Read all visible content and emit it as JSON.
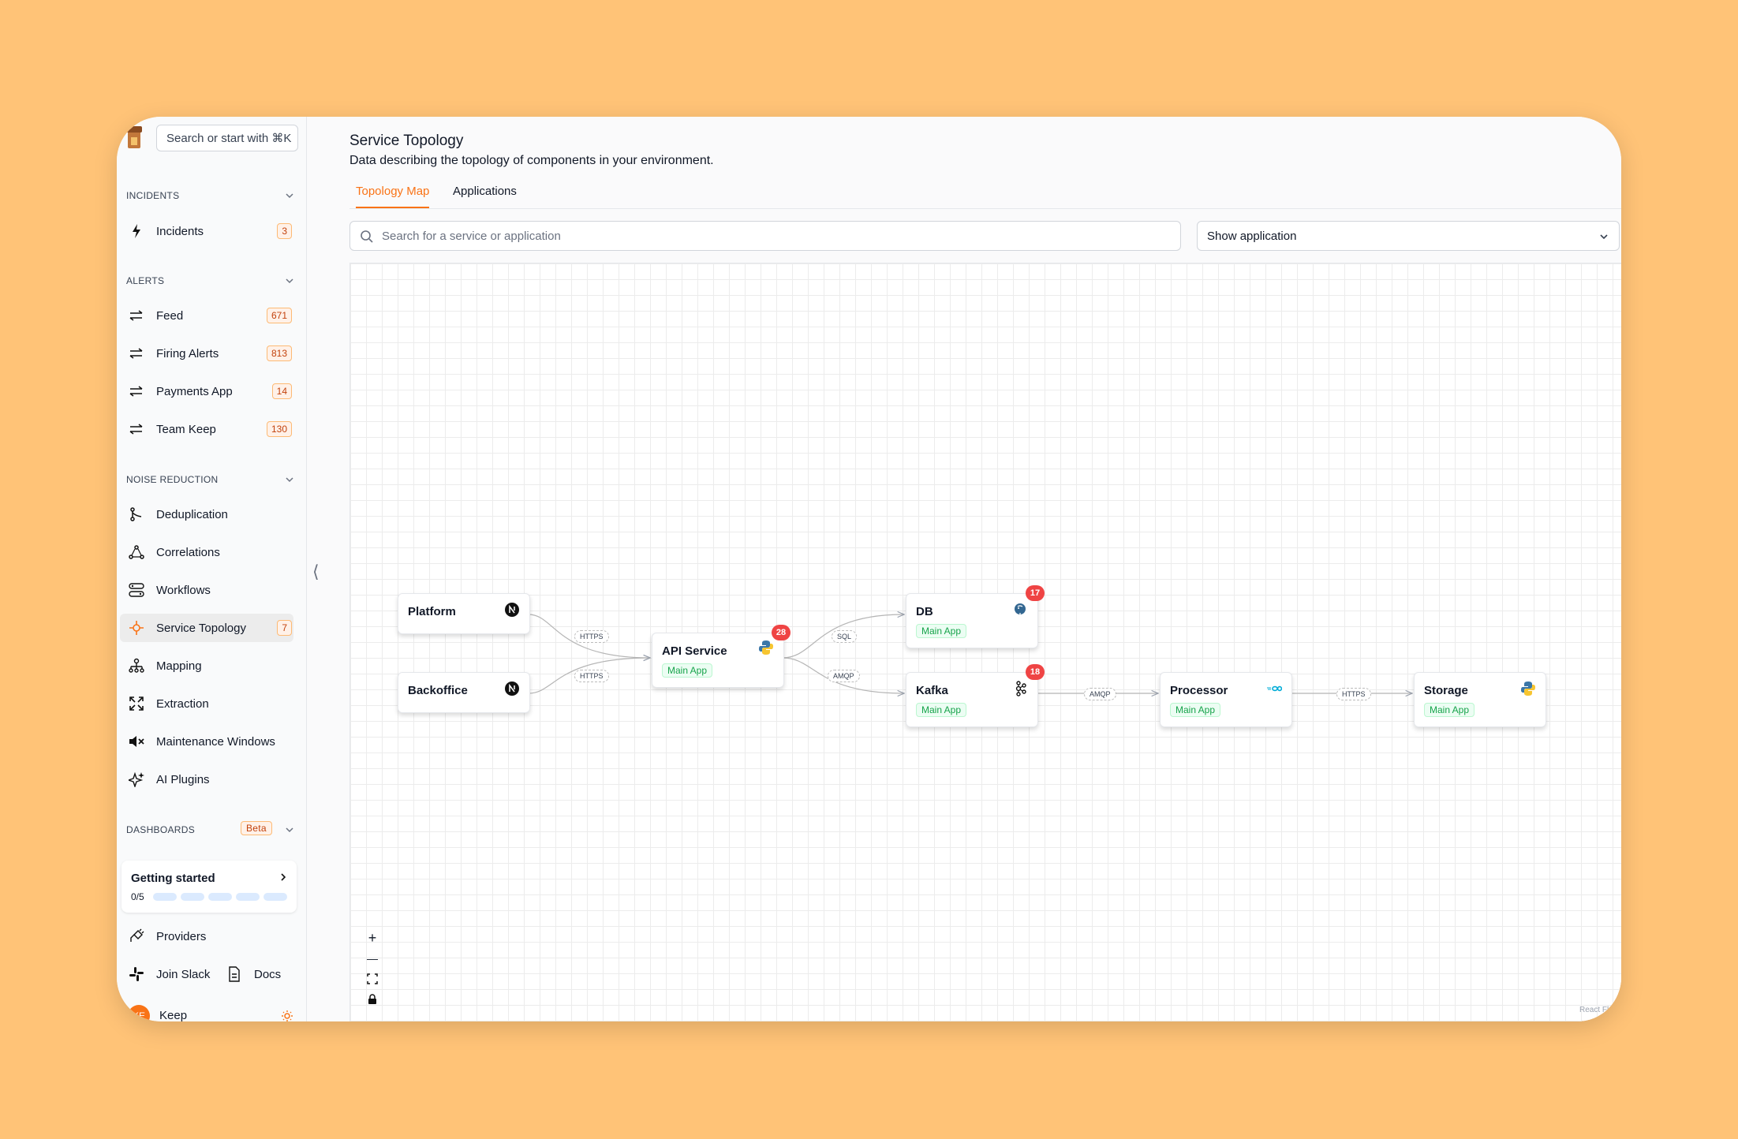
{
  "sidebar": {
    "search_placeholder": "Search or start with ⌘K",
    "sections": {
      "incidents": "INCIDENTS",
      "alerts": "ALERTS",
      "noise": "NOISE REDUCTION",
      "dashboards": "DASHBOARDS",
      "dashboards_badge": "Beta"
    },
    "items": {
      "incidents": {
        "label": "Incidents",
        "count": "3"
      },
      "feed": {
        "label": "Feed",
        "count": "671"
      },
      "firing": {
        "label": "Firing Alerts",
        "count": "813"
      },
      "payments": {
        "label": "Payments App",
        "count": "14"
      },
      "teamkeep": {
        "label": "Team Keep",
        "count": "130"
      },
      "dedup": {
        "label": "Deduplication"
      },
      "correlations": {
        "label": "Correlations"
      },
      "workflows": {
        "label": "Workflows"
      },
      "topology": {
        "label": "Service Topology",
        "count": "7"
      },
      "mapping": {
        "label": "Mapping"
      },
      "extraction": {
        "label": "Extraction"
      },
      "maintenance": {
        "label": "Maintenance Windows"
      },
      "aiplugins": {
        "label": "AI Plugins"
      },
      "providers": {
        "label": "Providers"
      },
      "slack": {
        "label": "Join Slack"
      },
      "docs": {
        "label": "Docs"
      }
    },
    "getting_started": {
      "title": "Getting started",
      "progress": "0/5",
      "steps_done": 0,
      "steps_total": 5
    },
    "user": {
      "initials": "KE",
      "name": "Keep"
    }
  },
  "page": {
    "title": "Service Topology",
    "subtitle": "Data describing the topology of components in your environment.",
    "tabs": [
      "Topology Map",
      "Applications"
    ],
    "active_tab": "Topology Map",
    "search_placeholder": "Search for a service or application",
    "select_value": "Show application"
  },
  "topology": {
    "nodes": {
      "platform": {
        "name": "Platform"
      },
      "backoffice": {
        "name": "Backoffice"
      },
      "api": {
        "name": "API Service",
        "app": "Main App",
        "alerts": "28"
      },
      "db": {
        "name": "DB",
        "app": "Main App",
        "alerts": "17"
      },
      "kafka": {
        "name": "Kafka",
        "app": "Main App",
        "alerts": "18"
      },
      "processor": {
        "name": "Processor",
        "app": "Main App"
      },
      "storage": {
        "name": "Storage",
        "app": "Main App"
      }
    },
    "edges": {
      "platform_api": "HTTPS",
      "backoffice_api": "HTTPS",
      "api_db": "SQL",
      "api_kafka": "AMQP",
      "kafka_processor": "AMQP",
      "processor_storage": "HTTPS"
    },
    "controls": {
      "zoom_in": "+",
      "zoom_out": "—"
    },
    "attribution": "React Flow"
  },
  "colors": {
    "accent": "#f97316",
    "alert": "#ef4444",
    "background": "#FFC377"
  }
}
